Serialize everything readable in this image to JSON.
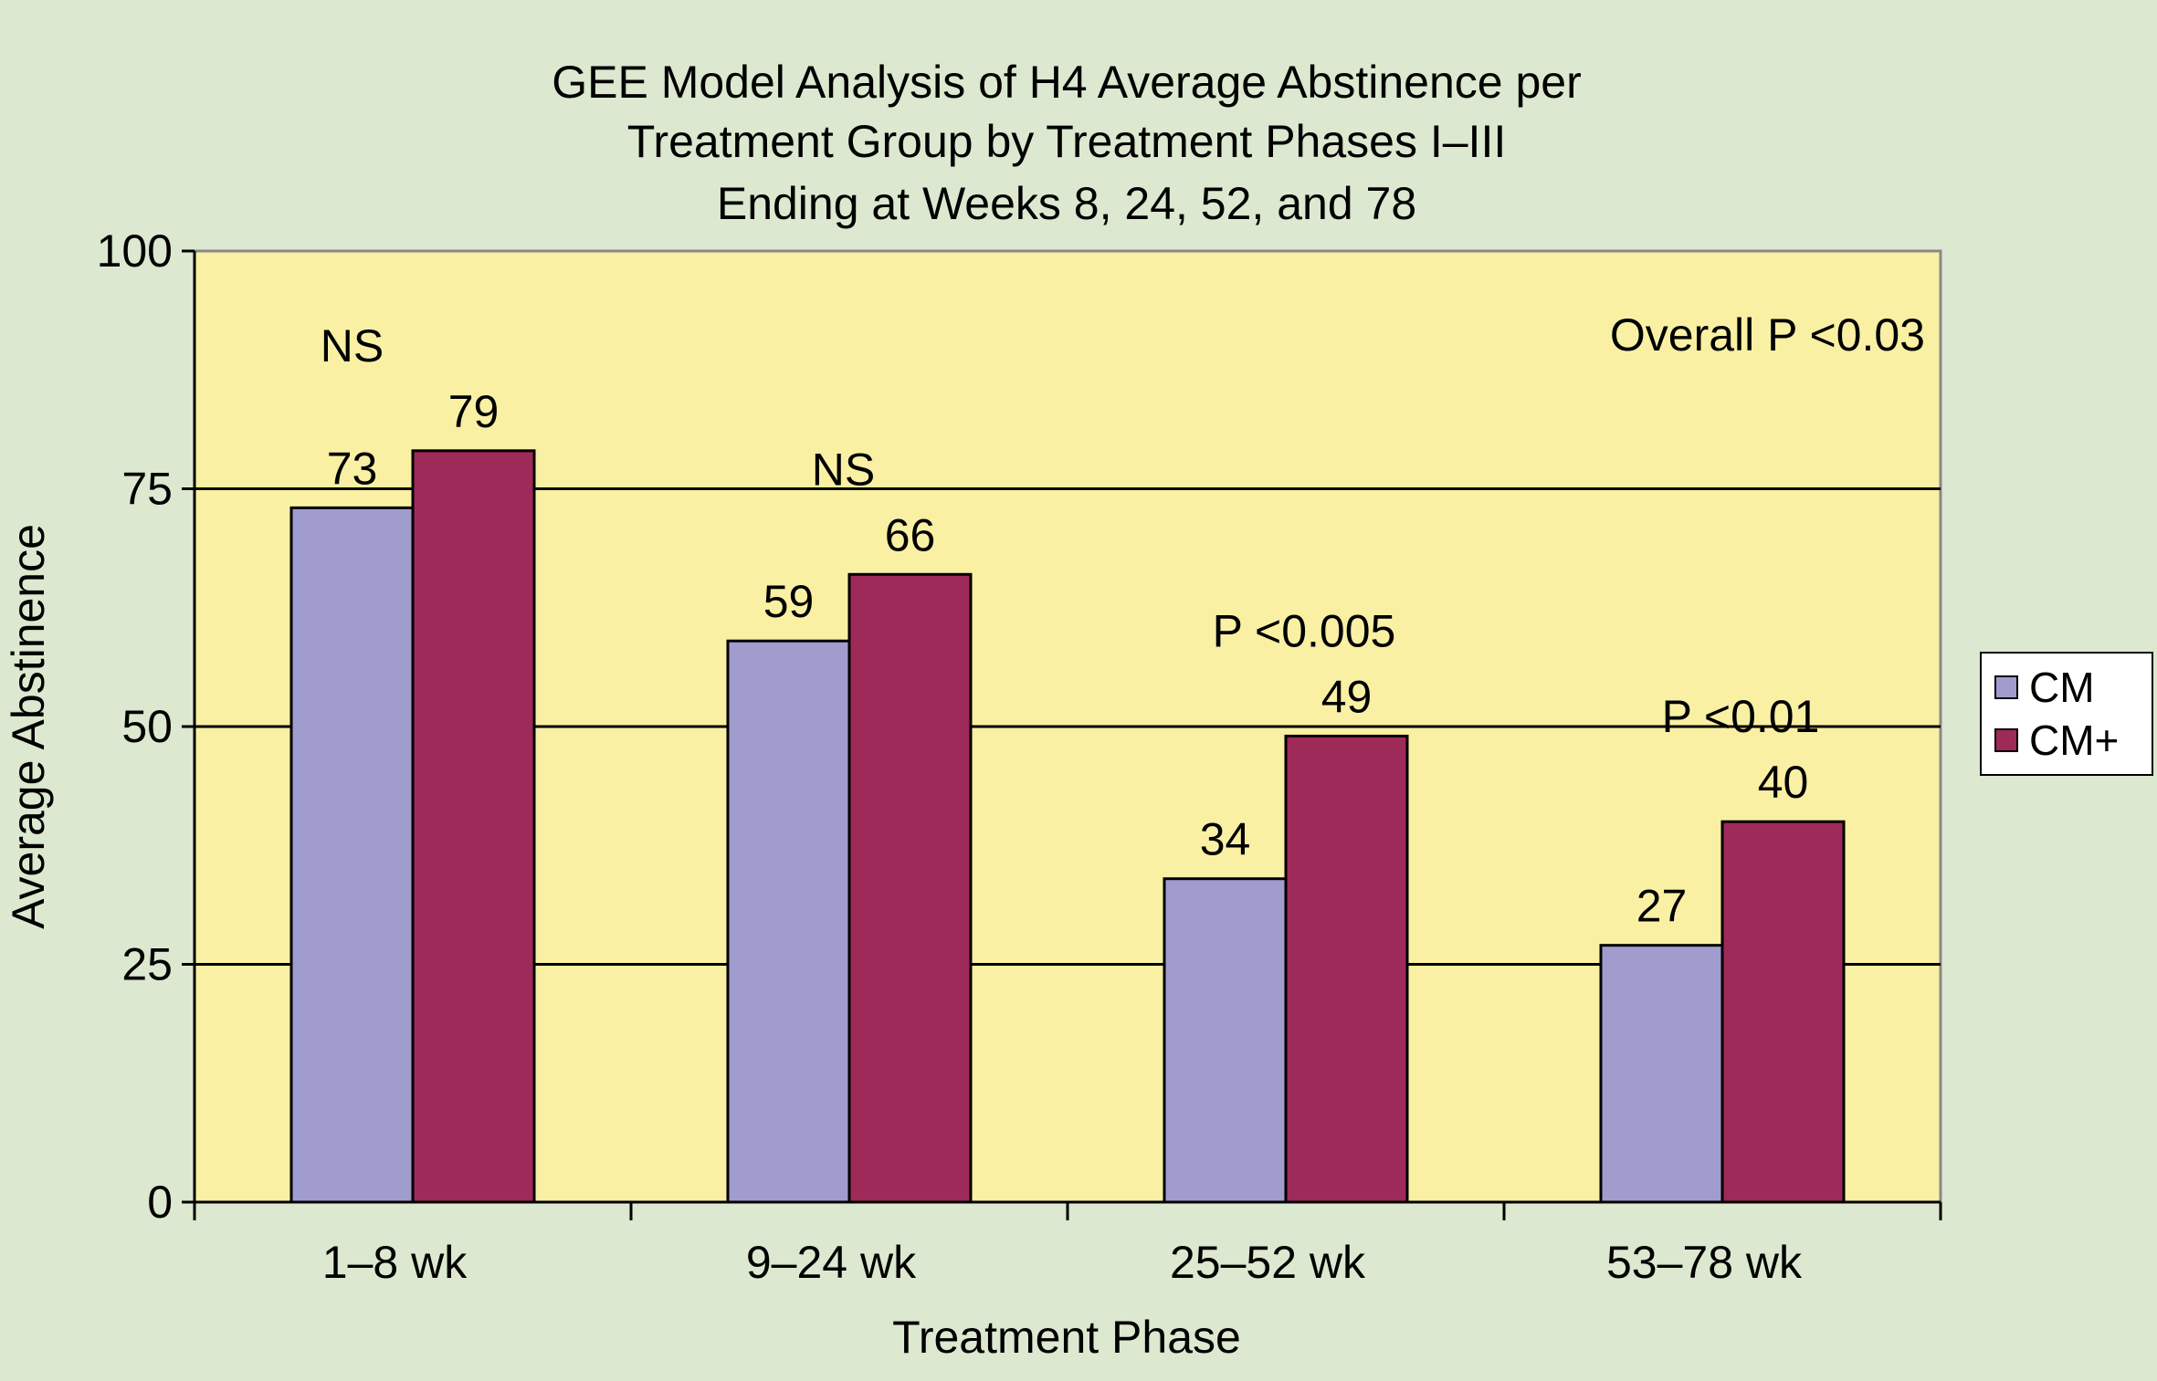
{
  "chart_data": {
    "type": "bar",
    "title_lines": [
      "GEE Model Analysis of H4 Average Abstinence per",
      "Treatment Group by Treatment Phases I–III",
      "Ending at Weeks 8, 24, 52, and 78"
    ],
    "xlabel": "Treatment Phase",
    "ylabel": "Average Abstinence",
    "ylim": [
      0,
      100
    ],
    "yticks": [
      "0",
      "25",
      "50",
      "75",
      "100"
    ],
    "categories": [
      "1–8 wk",
      "9–24 wk",
      "25–52 wk",
      "53–78 wk"
    ],
    "series": [
      {
        "name": "CM",
        "values": [
          73,
          59,
          34,
          27
        ],
        "color": "#a09dce"
      },
      {
        "name": "CM+",
        "values": [
          79,
          66,
          49,
          40
        ],
        "color": "#9e2a5a"
      }
    ],
    "data_labels": [
      [
        "73",
        "59",
        "34",
        "27"
      ],
      [
        "79",
        "66",
        "49",
        "40"
      ]
    ],
    "significance": [
      "NS",
      "NS",
      "P <0.005",
      "P <0.01"
    ],
    "overall_annotation": "Overall P <0.03",
    "grid": true,
    "legend": "right",
    "colors": {
      "page_background": "#dce8cf",
      "plot_background": "#f9f0a3"
    }
  }
}
